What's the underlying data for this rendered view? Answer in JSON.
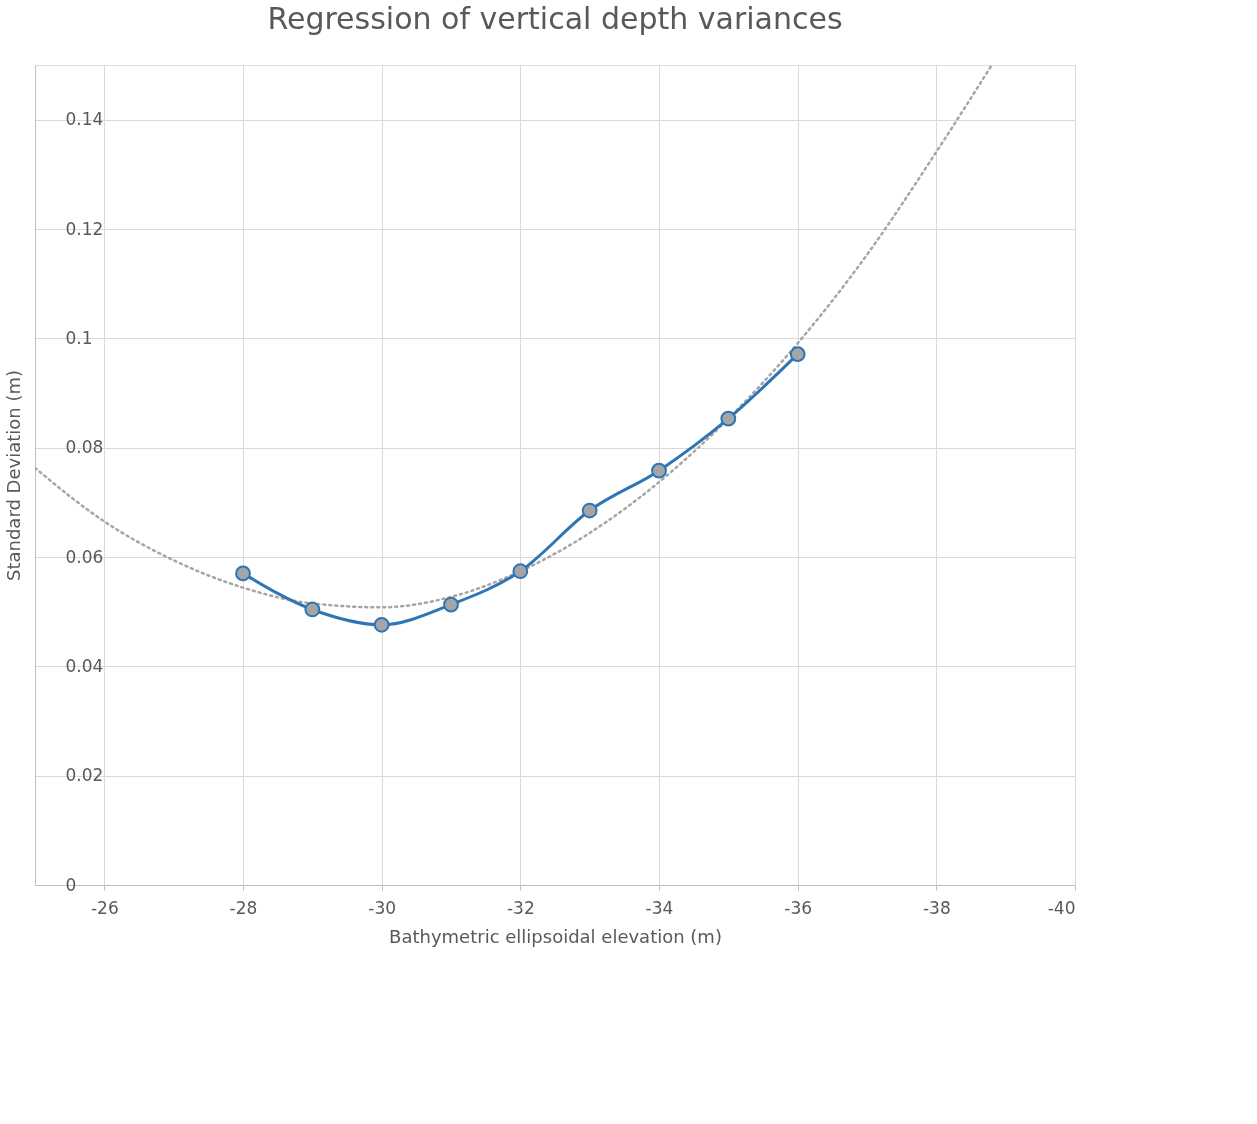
{
  "chart_data": {
    "type": "line",
    "title": "Regression of vertical depth variances",
    "xlabel": "Bathymetric ellipsoidal elevation (m)",
    "ylabel": "Standard Deviation (m)",
    "xlim": [
      -25,
      -40
    ],
    "xticks": [
      -26,
      -28,
      -30,
      -32,
      -34,
      -36,
      -38,
      -40
    ],
    "ylim": [
      0,
      0.15
    ],
    "yticks": [
      0,
      0.02,
      0.04,
      0.06,
      0.08,
      0.1,
      0.12,
      0.14
    ],
    "grid": true,
    "series": [
      {
        "color": "#a6a6a6",
        "line_style": "dotted",
        "marker": "none",
        "x": [
          -25,
          -26,
          -27,
          -28,
          -29,
          -30,
          -31,
          -32,
          -33,
          -34,
          -35,
          -36,
          -37,
          -38,
          -38.8
        ],
        "values": [
          0.0763,
          0.0665,
          0.0594,
          0.0544,
          0.0515,
          0.0508,
          0.0527,
          0.0574,
          0.0644,
          0.0737,
          0.0853,
          0.0991,
          0.1153,
          0.1341,
          0.15
        ]
      },
      {
        "color": "#2e75b6",
        "line_style": "solid",
        "marker": "circle",
        "x": [
          -28,
          -29,
          -30,
          -31,
          -32,
          -33,
          -34,
          -35,
          -36
        ],
        "values": [
          0.057,
          0.0504,
          0.0476,
          0.0513,
          0.0574,
          0.0685,
          0.0758,
          0.0853,
          0.0971
        ]
      }
    ]
  }
}
